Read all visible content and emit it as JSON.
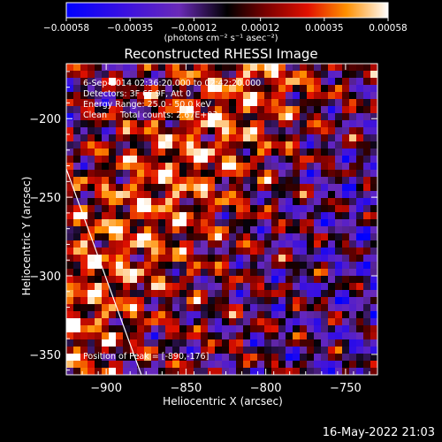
{
  "chart_data": {
    "type": "heatmap",
    "title": "Reconstructed RHESSI Image",
    "xlabel": "Heliocentric X (arcsec)",
    "ylabel": "Heliocentric Y (arcsec)",
    "xlim": [
      -925,
      -730
    ],
    "ylim": [
      -363,
      -165
    ],
    "x_ticks": [
      {
        "value": -900,
        "label": "−900"
      },
      {
        "value": -850,
        "label": "−850"
      },
      {
        "value": -800,
        "label": "−800"
      },
      {
        "value": -750,
        "label": "−750"
      }
    ],
    "y_ticks": [
      {
        "value": -200,
        "label": "−200"
      },
      {
        "value": -250,
        "label": "−250"
      },
      {
        "value": -300,
        "label": "−300"
      },
      {
        "value": -350,
        "label": "−350"
      }
    ],
    "colorbar": {
      "range": [
        -0.00058,
        0.00058
      ],
      "ticks": [
        {
          "value": -0.00058,
          "label": "−0.00058"
        },
        {
          "value": -0.00035,
          "label": "−0.00035"
        },
        {
          "value": -0.00012,
          "label": "−0.00012"
        },
        {
          "value": 0.00012,
          "label": "0.00012"
        },
        {
          "value": 0.00035,
          "label": "0.00035"
        },
        {
          "value": 0.00058,
          "label": "0.00058"
        }
      ],
      "unit_label": "(photons cm⁻² s⁻¹ asec⁻²)"
    },
    "annotations": [
      "6-Sep-2014 02:36:20.000 to 02:42:20.000",
      "Detectors: 3F 6F 9F, Att 0",
      "Energy Range: 25.0 - 50.0 keV",
      "Clean     Total counts: 2.67E+03"
    ],
    "peak_label": "Position of Peak = [-890,-176]",
    "limb_line": [
      [
        -925,
        -232
      ],
      [
        -878,
        -363
      ]
    ]
  },
  "timestamp": "16-May-2022 21:03"
}
